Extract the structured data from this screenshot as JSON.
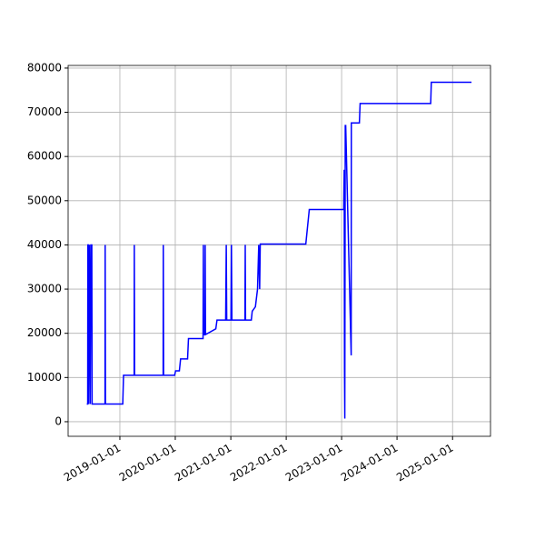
{
  "chart_data": {
    "type": "line",
    "color": "#0000ff",
    "grid": true,
    "x": [
      "2018-05-28",
      "2018-06-03",
      "2018-06-04",
      "2018-06-08",
      "2018-06-09",
      "2018-06-14",
      "2018-06-20",
      "2018-06-24",
      "2018-06-30",
      "2018-07-02",
      "2018-09-25",
      "2018-09-26",
      "2018-09-28",
      "2019-01-20",
      "2019-01-25",
      "2019-04-05",
      "2019-04-06",
      "2019-04-08",
      "2019-10-13",
      "2019-10-14",
      "2019-10-16",
      "2019-12-28",
      "2020-01-03",
      "2020-01-28",
      "2020-02-05",
      "2020-03-22",
      "2020-03-28",
      "2020-07-02",
      "2020-07-04",
      "2020-07-06",
      "2020-07-15",
      "2020-07-16",
      "2020-07-18",
      "2020-09-24",
      "2020-10-02",
      "2020-10-20",
      "2020-11-28",
      "2020-12-02",
      "2020-12-05",
      "2021-01-02",
      "2021-01-05",
      "2021-01-08",
      "2021-04-04",
      "2021-04-06",
      "2021-04-08",
      "2021-05-16",
      "2021-05-22",
      "2021-06-12",
      "2021-06-26",
      "2021-07-04",
      "2021-07-10",
      "2021-07-14",
      "2021-07-18",
      "2021-07-20",
      "2022-05-10",
      "2022-06-02",
      "2023-01-15",
      "2023-01-18",
      "2023-01-20",
      "2023-01-22",
      "2023-01-25",
      "2023-01-28",
      "2023-03-05",
      "2023-03-06",
      "2023-03-08",
      "2023-04-28",
      "2023-05-03",
      "2024-08-10",
      "2024-08-14",
      "2025-05-06"
    ],
    "values": [
      4000,
      4000,
      40000,
      40000,
      4000,
      40000,
      4000,
      40000,
      40000,
      4000,
      4000,
      40000,
      4000,
      4000,
      10500,
      10500,
      40000,
      10500,
      10500,
      40000,
      10500,
      10500,
      11500,
      11500,
      14200,
      14200,
      18800,
      18800,
      40000,
      19700,
      19700,
      40000,
      19700,
      21000,
      23000,
      23000,
      23000,
      40000,
      23000,
      23000,
      40000,
      23000,
      23000,
      40000,
      23000,
      23000,
      25000,
      26000,
      30000,
      40000,
      30000,
      40200,
      40200,
      40200,
      40200,
      48000,
      48000,
      57000,
      12000,
      700,
      67000,
      67000,
      15000,
      67600,
      67600,
      67600,
      72000,
      72000,
      76800,
      76800
    ],
    "xlim": [
      "2018-01-25",
      "2025-09-08"
    ],
    "ylim": [
      -3300,
      80600
    ],
    "xticks": [
      "2019-01-01",
      "2020-01-01",
      "2021-01-01",
      "2022-01-01",
      "2023-01-01",
      "2024-01-01",
      "2025-01-01"
    ],
    "yticks": [
      0,
      10000,
      20000,
      30000,
      40000,
      50000,
      60000,
      70000,
      80000
    ]
  }
}
